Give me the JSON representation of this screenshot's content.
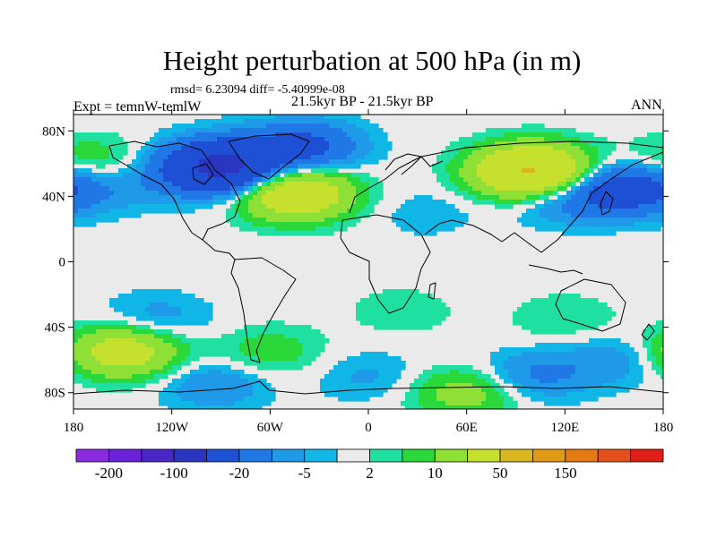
{
  "title": "Height perturbation at 500 hPa (in m)",
  "stats": "rmsd= 6.23094 diff= -5.40999e-08",
  "experiment": "Expt = temnW-temlW",
  "period": "21.5kyr BP - 21.5kyr BP",
  "season": "ANN",
  "chart_data": {
    "type": "heatmap",
    "projection": "cylindrical-equidistant",
    "lon_range": [
      -180,
      180
    ],
    "lat_range": [
      -90,
      90
    ],
    "x_ticks": [
      {
        "lon": -180,
        "label": "180"
      },
      {
        "lon": -120,
        "label": "120W"
      },
      {
        "lon": -60,
        "label": "60W"
      },
      {
        "lon": 0,
        "label": "0"
      },
      {
        "lon": 60,
        "label": "60E"
      },
      {
        "lon": 120,
        "label": "120E"
      },
      {
        "lon": 180,
        "label": "180"
      }
    ],
    "y_ticks": [
      {
        "lat": 80,
        "label": "80N"
      },
      {
        "lat": 40,
        "label": "40N"
      },
      {
        "lat": 0,
        "label": "0"
      },
      {
        "lat": -40,
        "label": "40S"
      },
      {
        "lat": -80,
        "label": "80S"
      }
    ],
    "colorbar": {
      "colors": [
        "#8a2be2",
        "#6b22d8",
        "#4a25c8",
        "#2a36c0",
        "#1e50d6",
        "#1f78e6",
        "#1f9ae8",
        "#10b6e6",
        "#eaeaea",
        "#1fe0a0",
        "#2ad83a",
        "#8ee036",
        "#c6e02e",
        "#d8b81e",
        "#e09a14",
        "#e67a12",
        "#e4501c",
        "#e01e16"
      ],
      "boundaries": [
        -200,
        -150,
        -100,
        -50,
        -20,
        -10,
        -5,
        -2,
        2,
        5,
        10,
        20,
        50,
        100,
        150,
        200,
        250
      ],
      "labels": [
        {
          "index": 1,
          "label": "-200"
        },
        {
          "index": 3,
          "label": "-100"
        },
        {
          "index": 5,
          "label": "-20"
        },
        {
          "index": 7,
          "label": "-5"
        },
        {
          "index": 9,
          "label": "2"
        },
        {
          "index": 11,
          "label": "10"
        },
        {
          "index": 13,
          "label": "50"
        },
        {
          "index": 15,
          "label": "150"
        }
      ]
    },
    "anomaly_centers_m": [
      {
        "lon": -90,
        "lat": 58,
        "value": -60
      },
      {
        "lon": -40,
        "lat": 70,
        "value": -25
      },
      {
        "lon": -150,
        "lat": 48,
        "value": -8
      },
      {
        "lon": 120,
        "lat": 40,
        "value": -15
      },
      {
        "lon": 160,
        "lat": 45,
        "value": -30
      },
      {
        "lon": 35,
        "lat": 30,
        "value": -4
      },
      {
        "lon": -45,
        "lat": 42,
        "value": 40
      },
      {
        "lon": 100,
        "lat": 55,
        "value": 55
      },
      {
        "lon": -170,
        "lat": 60,
        "value": 12
      },
      {
        "lon": -150,
        "lat": -55,
        "value": 30
      },
      {
        "lon": -130,
        "lat": -35,
        "value": -8
      },
      {
        "lon": -60,
        "lat": -55,
        "value": 8
      },
      {
        "lon": -95,
        "lat": -75,
        "value": -10
      },
      {
        "lon": 0,
        "lat": -70,
        "value": -6
      },
      {
        "lon": 20,
        "lat": -30,
        "value": 4
      },
      {
        "lon": 60,
        "lat": -80,
        "value": 15
      },
      {
        "lon": 100,
        "lat": -70,
        "value": -12
      },
      {
        "lon": 120,
        "lat": -35,
        "value": 5
      },
      {
        "lon": 150,
        "lat": -60,
        "value": -8
      }
    ]
  }
}
